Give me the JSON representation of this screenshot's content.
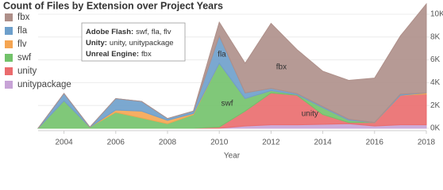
{
  "chart_data": {
    "type": "stacked_area",
    "title": "Count of Files by Extension over Project Years",
    "x_label": "Year",
    "x": [
      2003,
      2004,
      2005,
      2006,
      2007,
      2008,
      2009,
      2010,
      2011,
      2012,
      2013,
      2014,
      2015,
      2016,
      2017,
      2018
    ],
    "xlim": [
      2003,
      2018
    ],
    "xticks": [
      2004,
      2006,
      2008,
      2010,
      2012,
      2014,
      2016,
      2018
    ],
    "ylim": [
      0,
      10.9
    ],
    "yticks": [
      {
        "value": 0,
        "label": "0K"
      },
      {
        "value": 2,
        "label": "2K"
      },
      {
        "value": 4,
        "label": "4K"
      },
      {
        "value": 6,
        "label": "6K"
      },
      {
        "value": 8,
        "label": "8K"
      },
      {
        "value": 10,
        "label": "10K"
      }
    ],
    "grid": true,
    "legend": "top-left",
    "series": [
      {
        "name": "unitypackage",
        "color": "#c7a3d6",
        "values": [
          0,
          0,
          0,
          0,
          0,
          0,
          0,
          0,
          0.2,
          0.3,
          0.3,
          0.35,
          0.4,
          0.2,
          0.3,
          0.3
        ]
      },
      {
        "name": "unity",
        "color": "#ea6b6d",
        "values": [
          0,
          0,
          0,
          0,
          0,
          0,
          0,
          0.1,
          1.3,
          2.8,
          2.6,
          0.85,
          0.1,
          0.3,
          2.6,
          2.7
        ]
      },
      {
        "name": "swf",
        "color": "#72c26a",
        "values": [
          0,
          2.4,
          0.1,
          1.4,
          0.9,
          0.4,
          1.2,
          5.6,
          1.1,
          0.2,
          0.05,
          0.6,
          0.2,
          0,
          0,
          0
        ]
      },
      {
        "name": "flv",
        "color": "#f5a552",
        "values": [
          0,
          0,
          0,
          0.2,
          0.6,
          0.3,
          0.1,
          0,
          0,
          0,
          0,
          0,
          0,
          0,
          0,
          0.1
        ]
      },
      {
        "name": "fla",
        "color": "#6d9fcb",
        "values": [
          0,
          0.65,
          0,
          1.0,
          0.85,
          0.15,
          0.2,
          2.4,
          0.5,
          0.2,
          0.1,
          0.1,
          0.1,
          0,
          0.1,
          0
        ]
      },
      {
        "name": "fbx",
        "color": "#ae8f89",
        "values": [
          0,
          0,
          0,
          0,
          0,
          0,
          0,
          1.2,
          2.6,
          5.7,
          3.85,
          3.1,
          3.4,
          3.9,
          5.1,
          7.8
        ]
      }
    ],
    "area_labels": [
      "fla",
      "fbx",
      "swf",
      "unity"
    ],
    "tooltip": [
      {
        "label": "Adobe Flash:",
        "value": "swf, fla, flv"
      },
      {
        "label": "Unity:",
        "value": "unity, unitypackage"
      },
      {
        "label": "Unreal Engine:",
        "value": "fbx"
      }
    ]
  }
}
